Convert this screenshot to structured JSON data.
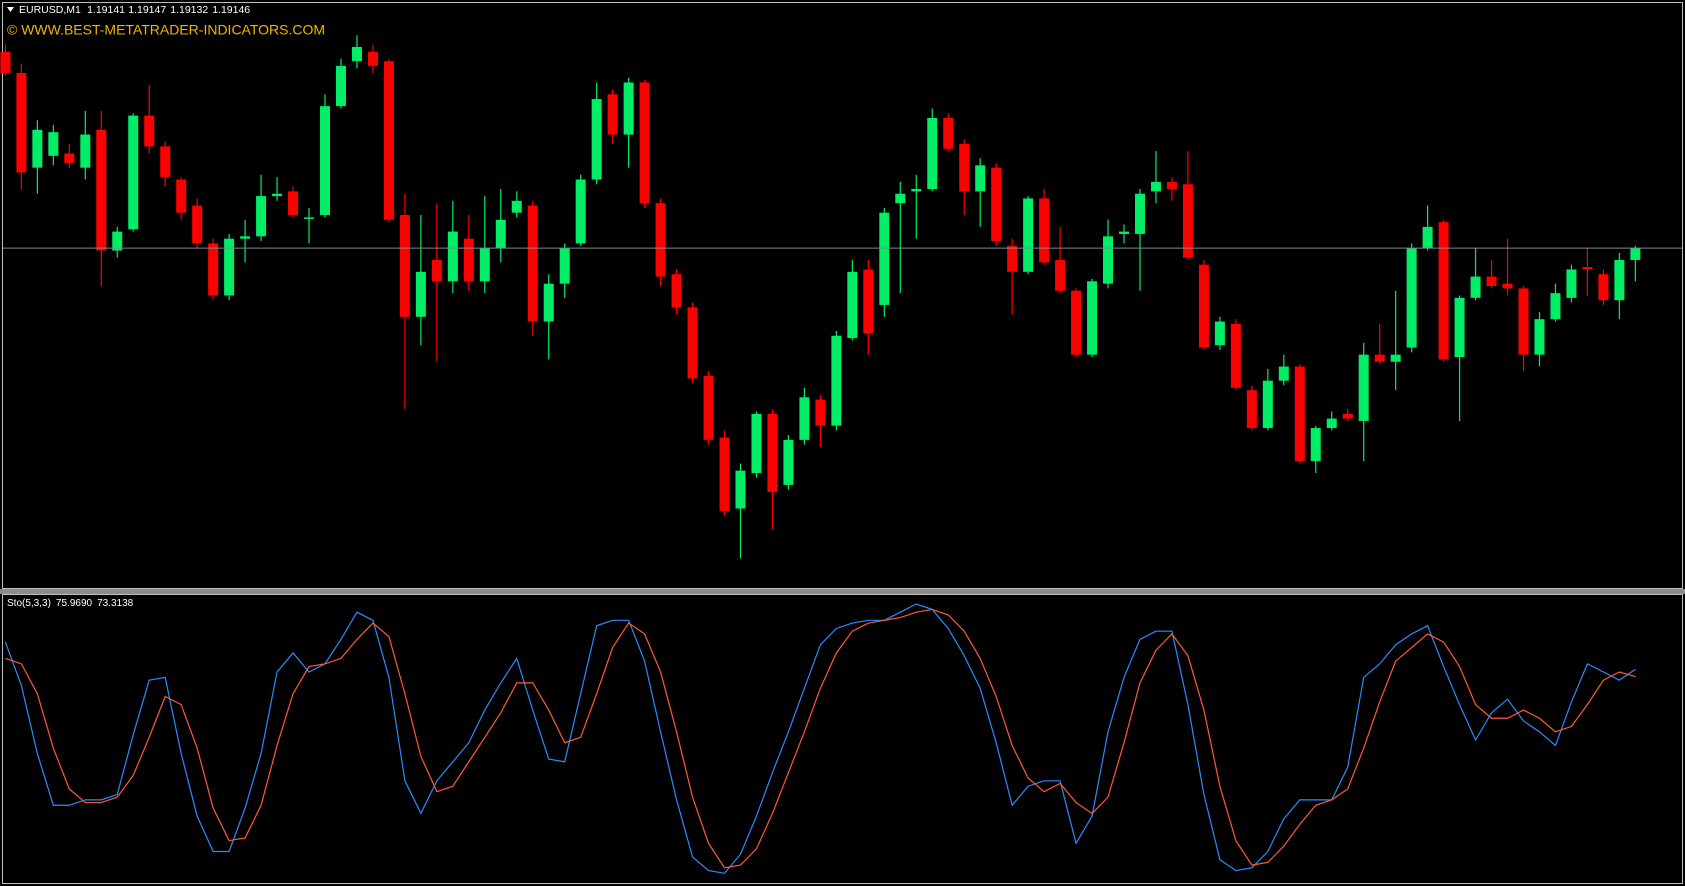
{
  "chart_data": [
    {
      "type": "candlestick",
      "title": "EURUSD,M1",
      "watermark": "© WWW.BEST-METATRADER-INDICATORS.COM",
      "up_color": "#00ee66",
      "down_color": "#ff0000",
      "bid_line_color": "#7d8a94",
      "ylim": [
        1.19002,
        1.1925
      ],
      "open": [
        1.19229,
        1.1922,
        1.1918,
        1.19185,
        1.19186,
        1.1918,
        1.19196,
        1.19145,
        1.19154,
        1.19202,
        1.19189,
        1.19175,
        1.19164,
        1.19148,
        1.19126,
        1.1915,
        1.19151,
        1.19168,
        1.1917,
        1.19159,
        1.1916,
        1.19206,
        1.19225,
        1.19229,
        1.19225,
        1.1916,
        1.19117,
        1.19141,
        1.19132,
        1.1915,
        1.19132,
        1.19146,
        1.19161,
        1.19164,
        1.19115,
        1.19131,
        1.19148,
        1.19175,
        1.19211,
        1.19194,
        1.19216,
        1.19165,
        1.19135,
        1.19121,
        1.19092,
        1.19066,
        1.19036,
        1.19051,
        1.19076,
        1.19046,
        1.19065,
        1.19082,
        1.19071,
        1.19108,
        1.19137,
        1.19122,
        1.19165,
        1.1917,
        1.19171,
        1.19201,
        1.1919,
        1.1917,
        1.1918,
        1.19147,
        1.19136,
        1.19167,
        1.19141,
        1.19128,
        1.19101,
        1.19131,
        1.19152,
        1.19152,
        1.1917,
        1.19174,
        1.19173,
        1.19139,
        1.19105,
        1.19114,
        1.19086,
        1.1907,
        1.1909,
        1.19096,
        1.19056,
        1.1907,
        1.19076,
        1.19073,
        1.19101,
        1.19098,
        1.19104,
        1.19146,
        1.19157,
        1.191,
        1.19125,
        1.19134,
        1.19131,
        1.19129,
        1.19101,
        1.19116,
        1.19125,
        1.19138,
        1.19135,
        1.19124,
        1.19141
      ],
      "high": [
        1.19232,
        1.19224,
        1.192,
        1.19198,
        1.1919,
        1.19204,
        1.19204,
        1.19155,
        1.19203,
        1.19215,
        1.19191,
        1.19176,
        1.19167,
        1.1915,
        1.19152,
        1.19158,
        1.19177,
        1.19176,
        1.19172,
        1.19163,
        1.19211,
        1.19226,
        1.19236,
        1.19232,
        1.19226,
        1.19169,
        1.1916,
        1.19165,
        1.19166,
        1.1916,
        1.19168,
        1.19171,
        1.1917,
        1.19166,
        1.19135,
        1.19148,
        1.19177,
        1.19216,
        1.19213,
        1.19218,
        1.19217,
        1.19167,
        1.19137,
        1.19123,
        1.19094,
        1.19069,
        1.19055,
        1.19077,
        1.19078,
        1.19067,
        1.19087,
        1.19084,
        1.19111,
        1.19141,
        1.19141,
        1.19163,
        1.19174,
        1.19177,
        1.19205,
        1.19203,
        1.19192,
        1.19184,
        1.19182,
        1.1915,
        1.19168,
        1.19171,
        1.19155,
        1.19129,
        1.19133,
        1.19158,
        1.19156,
        1.19171,
        1.19187,
        1.19176,
        1.19187,
        1.19141,
        1.19117,
        1.19116,
        1.19088,
        1.19095,
        1.19101,
        1.19097,
        1.19071,
        1.19077,
        1.19078,
        1.19106,
        1.19114,
        1.19128,
        1.19148,
        1.19164,
        1.19158,
        1.19126,
        1.19146,
        1.19141,
        1.1915,
        1.1913,
        1.19119,
        1.19131,
        1.19139,
        1.19146,
        1.19137,
        1.19144,
        1.19147
      ],
      "low": [
        1.19219,
        1.19171,
        1.19169,
        1.19181,
        1.1918,
        1.19175,
        1.1913,
        1.19142,
        1.19153,
        1.19186,
        1.19172,
        1.19158,
        1.19146,
        1.19124,
        1.19124,
        1.1914,
        1.19149,
        1.19166,
        1.19159,
        1.19148,
        1.19159,
        1.19205,
        1.19222,
        1.1922,
        1.19157,
        1.19078,
        1.19105,
        1.19098,
        1.19127,
        1.19128,
        1.19127,
        1.1914,
        1.19159,
        1.19109,
        1.19099,
        1.19125,
        1.19147,
        1.19173,
        1.1919,
        1.1918,
        1.19163,
        1.1913,
        1.19118,
        1.19089,
        1.19063,
        1.19033,
        1.19015,
        1.19049,
        1.19027,
        1.19044,
        1.19063,
        1.19062,
        1.19069,
        1.19107,
        1.19101,
        1.19117,
        1.19127,
        1.1915,
        1.1917,
        1.19187,
        1.1916,
        1.19155,
        1.19147,
        1.19118,
        1.19135,
        1.19139,
        1.19127,
        1.191,
        1.191,
        1.19129,
        1.19148,
        1.19128,
        1.19165,
        1.19166,
        1.19141,
        1.19103,
        1.19103,
        1.19086,
        1.19069,
        1.19069,
        1.19088,
        1.19055,
        1.19051,
        1.19069,
        1.19073,
        1.19056,
        1.19097,
        1.19086,
        1.19102,
        1.19145,
        1.19098,
        1.19073,
        1.19124,
        1.19129,
        1.19126,
        1.19094,
        1.19096,
        1.19115,
        1.19123,
        1.19126,
        1.19122,
        1.19116,
        1.19132
      ],
      "close": [
        1.1922,
        1.19178,
        1.19196,
        1.19195,
        1.19182,
        1.19194,
        1.19145,
        1.19153,
        1.19202,
        1.19189,
        1.19176,
        1.19161,
        1.19148,
        1.19126,
        1.1915,
        1.19151,
        1.19168,
        1.19169,
        1.1916,
        1.19159,
        1.19206,
        1.19223,
        1.19231,
        1.19223,
        1.19158,
        1.19117,
        1.19136,
        1.19132,
        1.19153,
        1.19132,
        1.19146,
        1.19158,
        1.19166,
        1.19115,
        1.19131,
        1.19146,
        1.19175,
        1.19209,
        1.19194,
        1.19216,
        1.19165,
        1.19134,
        1.19121,
        1.19091,
        1.19065,
        1.19035,
        1.19052,
        1.19076,
        1.19043,
        1.19065,
        1.19083,
        1.19071,
        1.19109,
        1.19136,
        1.1911,
        1.19161,
        1.19169,
        1.19171,
        1.19201,
        1.19188,
        1.1917,
        1.19181,
        1.19149,
        1.19136,
        1.19167,
        1.1914,
        1.19128,
        1.19101,
        1.19132,
        1.19151,
        1.19153,
        1.19169,
        1.19174,
        1.19171,
        1.19142,
        1.19104,
        1.19115,
        1.19087,
        1.1907,
        1.1909,
        1.19096,
        1.19056,
        1.1907,
        1.19074,
        1.19074,
        1.19101,
        1.19098,
        1.19101,
        1.19146,
        1.19155,
        1.19099,
        1.19125,
        1.19134,
        1.1913,
        1.19129,
        1.19101,
        1.19116,
        1.19127,
        1.19137,
        1.19137,
        1.19124,
        1.19141,
        1.19146
      ]
    },
    {
      "type": "line",
      "title": "Sto(5,3,3)",
      "readings": [
        {
          "value": 75.969,
          "label": "75.9690"
        },
        73.3138
      ],
      "ylim": [
        0,
        100
      ],
      "series": [
        {
          "color": "#2a8cff",
          "values": [
            86,
            70,
            45,
            26,
            26,
            28,
            28,
            30,
            52,
            72,
            73,
            45,
            22,
            9,
            9,
            25,
            45,
            75,
            82,
            75,
            78,
            87,
            97,
            94,
            73,
            35,
            23,
            35,
            42,
            49,
            61,
            71,
            80,
            61,
            43,
            42,
            67,
            92,
            94,
            94,
            79,
            53,
            28,
            7,
            2,
            1,
            8,
            22,
            38,
            53,
            69,
            85,
            91,
            93,
            94,
            94,
            97,
            100,
            98,
            91,
            81,
            69,
            49,
            26,
            33,
            35,
            35,
            12,
            22,
            53,
            73,
            87,
            90,
            90,
            63,
            30,
            6,
            2,
            3,
            9,
            21,
            28,
            28,
            28,
            40,
            73,
            78,
            85,
            89,
            92,
            77,
            63,
            50,
            60,
            65,
            57,
            53,
            48,
            64,
            78,
            75,
            72,
            75.969
          ]
        },
        {
          "color": "#ff5a36",
          "values": [
            80,
            78,
            67,
            47,
            32,
            27,
            27,
            29,
            37,
            51,
            66,
            63,
            47,
            25,
            13,
            14,
            26,
            48,
            67,
            77,
            78,
            80,
            87,
            93,
            88,
            67,
            44,
            31,
            33,
            42,
            51,
            60,
            71,
            71,
            61,
            49,
            51,
            67,
            84,
            93,
            89,
            75,
            53,
            29,
            12,
            3,
            4,
            10,
            23,
            38,
            53,
            69,
            82,
            90,
            93,
            94,
            95,
            97,
            98,
            96,
            90,
            80,
            66,
            48,
            36,
            31,
            34,
            27,
            23,
            29,
            49,
            71,
            83,
            89,
            81,
            61,
            33,
            13,
            4,
            5,
            11,
            19,
            26,
            28,
            32,
            47,
            64,
            79,
            84,
            89,
            86,
            77,
            63,
            58,
            58,
            61,
            58,
            53,
            55,
            63,
            72,
            75,
            73.3138
          ]
        }
      ]
    }
  ]
}
